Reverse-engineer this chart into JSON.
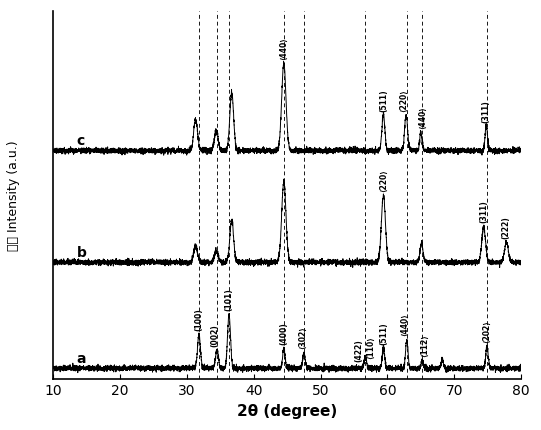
{
  "xlabel": "2θ (degree)",
  "ylabel": "Intensity (a.u.)",
  "xlim": [
    10,
    80
  ],
  "ylim": [
    -0.1,
    3.2
  ],
  "x_ticks": [
    10,
    20,
    30,
    40,
    50,
    60,
    70,
    80
  ],
  "dashed_lines": [
    31.8,
    34.5,
    36.3,
    44.5,
    47.5,
    56.6,
    62.9,
    65.2,
    74.9
  ],
  "curve_offsets": [
    0.0,
    0.95,
    1.95
  ],
  "peaks_a": {
    "positions": [
      31.8,
      34.5,
      36.3,
      44.5,
      47.5,
      56.7,
      59.4,
      62.9,
      65.2,
      68.2,
      74.9
    ],
    "heights": [
      0.3,
      0.16,
      0.48,
      0.18,
      0.14,
      0.1,
      0.18,
      0.26,
      0.07,
      0.09,
      0.2
    ],
    "widths": [
      0.22,
      0.22,
      0.22,
      0.18,
      0.18,
      0.18,
      0.18,
      0.18,
      0.15,
      0.15,
      0.18
    ]
  },
  "peaks_b": {
    "positions": [
      31.3,
      34.4,
      36.7,
      44.5,
      59.4,
      65.1,
      74.4,
      77.8
    ],
    "heights": [
      0.15,
      0.1,
      0.38,
      0.72,
      0.6,
      0.17,
      0.32,
      0.18
    ],
    "widths": [
      0.28,
      0.28,
      0.28,
      0.32,
      0.3,
      0.22,
      0.28,
      0.28
    ]
  },
  "peaks_c": {
    "positions": [
      31.3,
      34.4,
      36.7,
      44.5,
      59.4,
      62.8,
      65.0,
      74.8
    ],
    "heights": [
      0.28,
      0.18,
      0.52,
      0.78,
      0.32,
      0.32,
      0.16,
      0.22
    ],
    "widths": [
      0.28,
      0.28,
      0.28,
      0.32,
      0.22,
      0.22,
      0.18,
      0.18
    ]
  },
  "noise_amplitude": 0.012,
  "background_color": "#ffffff",
  "line_color": "#000000",
  "label_a": "a",
  "label_b": "b",
  "label_c": "c"
}
